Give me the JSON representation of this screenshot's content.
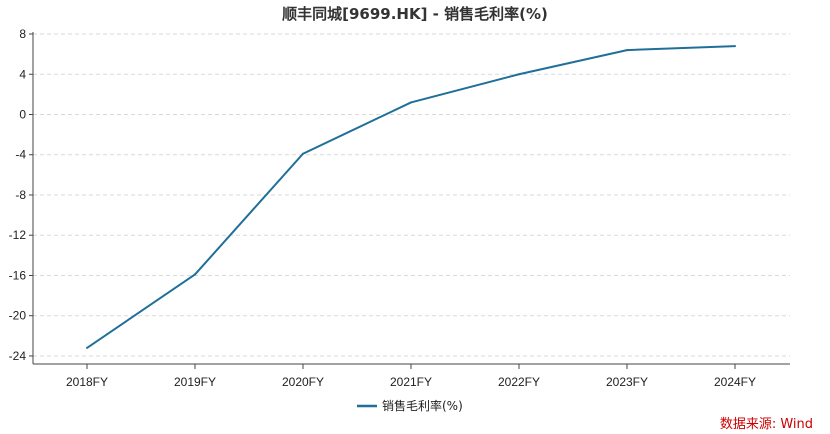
{
  "chart_data": {
    "type": "line",
    "title": "顺丰同城[9699.HK] - 销售毛利率(%)",
    "categories": [
      "2018FY",
      "2019FY",
      "2020FY",
      "2021FY",
      "2022FY",
      "2023FY",
      "2024FY"
    ],
    "series": [
      {
        "name": "销售毛利率(%)",
        "values": [
          -23.2,
          -15.9,
          -3.9,
          1.2,
          4.0,
          6.4,
          6.8
        ]
      }
    ],
    "y_ticks": [
      "8",
      "4",
      "0",
      "-4",
      "-8",
      "-12",
      "-16",
      "-20",
      "-24"
    ],
    "ylim": [
      -24.8,
      8.2
    ],
    "grid": true,
    "legend_position": "bottom",
    "source": "数据来源: Wind",
    "colors": {
      "line": "#1f6f98",
      "source": "#cc0000",
      "grid": "#d9d9d9",
      "axis": "#444444"
    }
  }
}
